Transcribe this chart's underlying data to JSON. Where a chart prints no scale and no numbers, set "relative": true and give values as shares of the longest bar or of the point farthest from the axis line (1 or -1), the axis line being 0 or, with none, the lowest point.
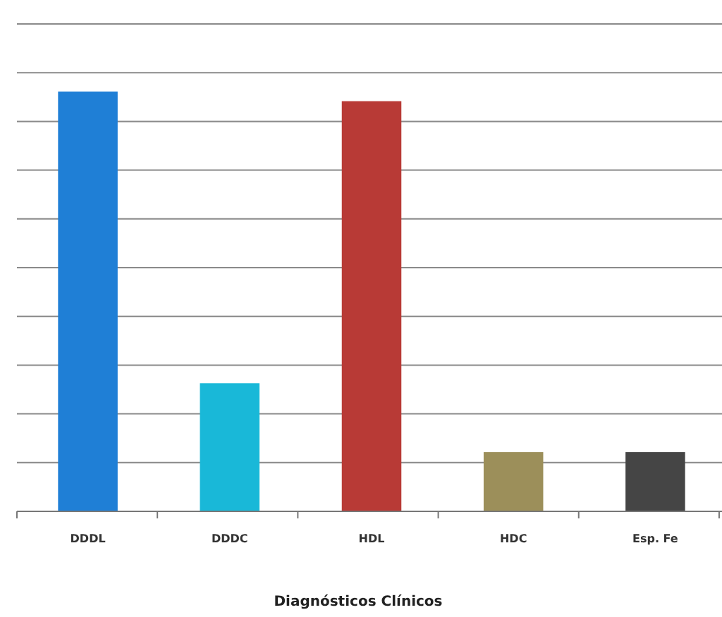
{
  "chart_data": {
    "type": "bar",
    "relative": true,
    "categories": [
      "DDDL",
      "DDDC",
      "HDL",
      "HDC",
      "Esp. Fe"
    ],
    "values": [
      1,
      0.305,
      0.977,
      0.141,
      0.141
    ],
    "colors": [
      "#1f7fd6",
      "#19b8d8",
      "#b83a36",
      "#9c8f5a",
      "#454545"
    ],
    "xlabel": "Diagnósticos Clínicos",
    "grid": true
  }
}
